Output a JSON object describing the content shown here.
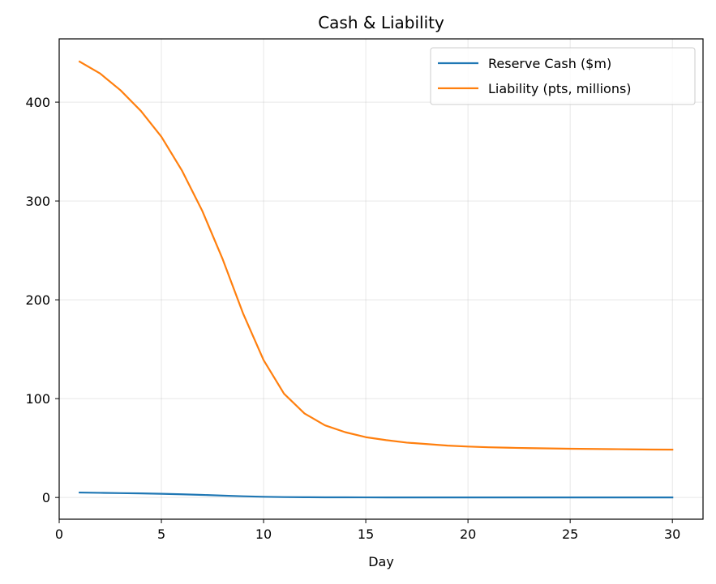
{
  "chart_data": {
    "type": "line",
    "title": "Cash & Liability",
    "xlabel": "Day",
    "ylabel": "",
    "xlim": [
      0,
      31.5
    ],
    "ylim": [
      -22,
      464
    ],
    "xticks": [
      0,
      5,
      10,
      15,
      20,
      25,
      30
    ],
    "yticks": [
      0,
      100,
      200,
      300,
      400
    ],
    "grid": true,
    "legend_position": "top-right",
    "x": [
      1,
      2,
      3,
      4,
      5,
      6,
      7,
      8,
      9,
      10,
      11,
      12,
      13,
      14,
      15,
      16,
      17,
      18,
      19,
      20,
      21,
      22,
      23,
      24,
      25,
      26,
      27,
      28,
      29,
      30
    ],
    "series": [
      {
        "name": "Reserve Cash ($m)",
        "color": "#1f77b4",
        "values": [
          5.0,
          4.7,
          4.4,
          4.1,
          3.7,
          3.2,
          2.6,
          1.9,
          1.2,
          0.7,
          0.4,
          0.25,
          0.15,
          0.1,
          0.07,
          0.05,
          0.04,
          0.03,
          0.02,
          0.02,
          0.01,
          0.01,
          0.01,
          0.01,
          0.0,
          0.0,
          0.0,
          0.0,
          0.0,
          0.0
        ]
      },
      {
        "name": "Liability (pts, millions)",
        "color": "#ff7f0e",
        "values": [
          441,
          429,
          412,
          391,
          365,
          331,
          290,
          241,
          186,
          139,
          105,
          85,
          73,
          66,
          61,
          58,
          55.5,
          54,
          52.5,
          51.5,
          50.8,
          50.3,
          49.9,
          49.6,
          49.3,
          49.1,
          48.9,
          48.7,
          48.5,
          48.4
        ]
      }
    ]
  }
}
